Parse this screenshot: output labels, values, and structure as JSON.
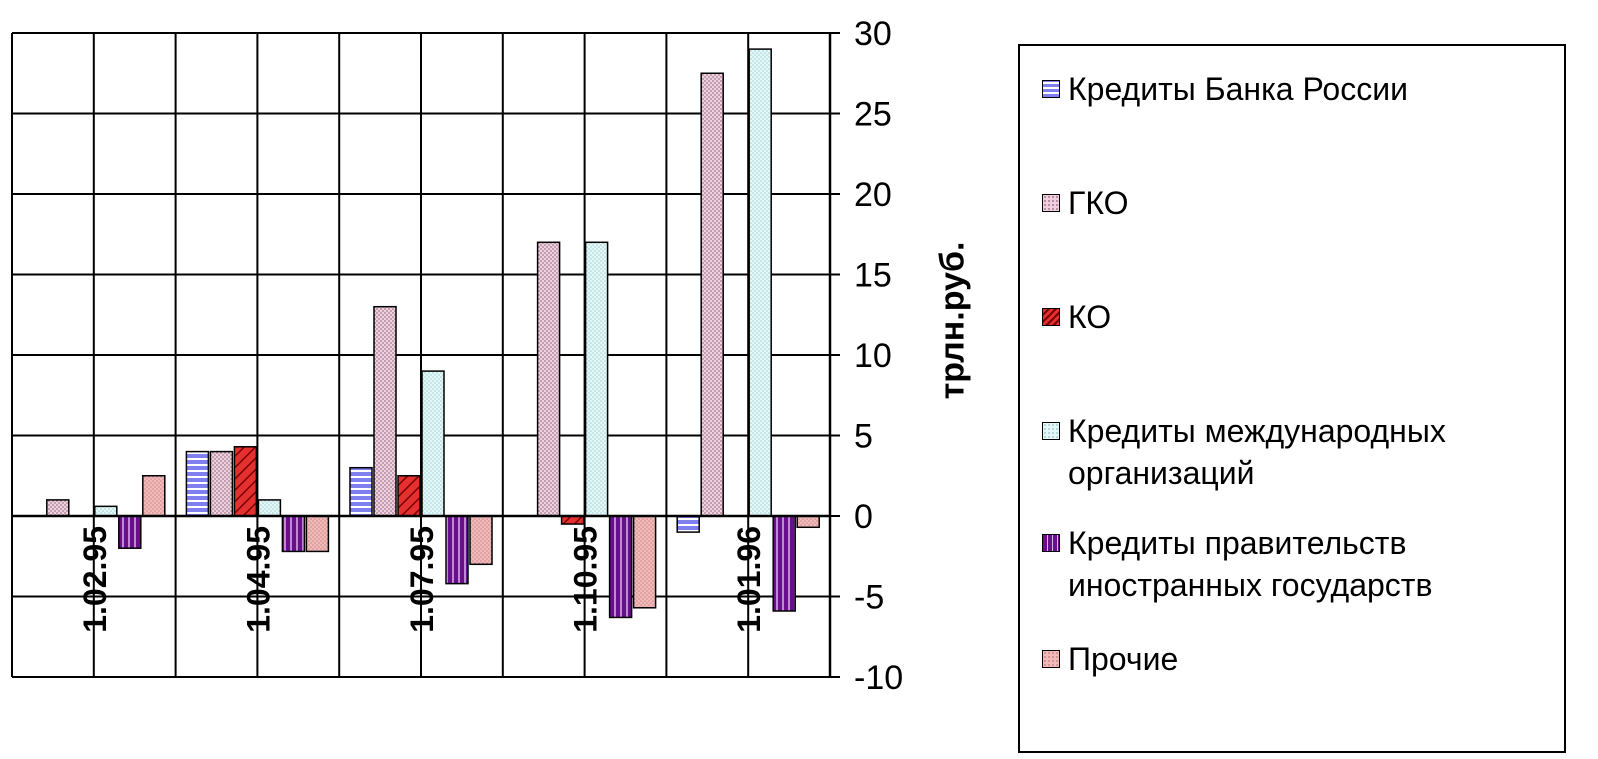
{
  "chart_data": {
    "type": "bar",
    "categories": [
      "1.02.95",
      "1.04.95",
      "1.07.95",
      "1.10.95",
      "1.01.96"
    ],
    "series": [
      {
        "name": "Кредиты Банка России",
        "values": [
          0,
          4,
          3,
          0,
          -1
        ],
        "color": "#7f7fef",
        "pattern": "hlines"
      },
      {
        "name": "ГКО",
        "values": [
          1,
          4,
          13,
          17,
          27.5
        ],
        "color": "#f2cfe0",
        "pattern": "dots"
      },
      {
        "name": "КО",
        "values": [
          0,
          4.3,
          2.5,
          -0.5,
          0
        ],
        "color": "#e53030",
        "pattern": "diag"
      },
      {
        "name": "Кредиты международных\nорганизаций",
        "values": [
          0.6,
          1,
          9,
          17,
          29
        ],
        "color": "#e3f8f8",
        "pattern": "dots-light"
      },
      {
        "name": "Кредиты правительств\nиностранных государств",
        "values": [
          -2,
          -2.2,
          -4.2,
          -6.3,
          -5.9
        ],
        "color": "#6a0f8c",
        "pattern": "vlines"
      },
      {
        "name": "Прочие",
        "values": [
          2.5,
          -2.2,
          -3,
          -5.7,
          -0.7
        ],
        "color": "#f4b9b9",
        "pattern": "dots"
      }
    ],
    "ylabel": "трлн.руб.",
    "ylim": [
      -10,
      30
    ],
    "yticks": [
      30,
      25,
      20,
      15,
      10,
      5,
      0,
      -5,
      -10
    ],
    "grid": true,
    "legend": "right"
  }
}
